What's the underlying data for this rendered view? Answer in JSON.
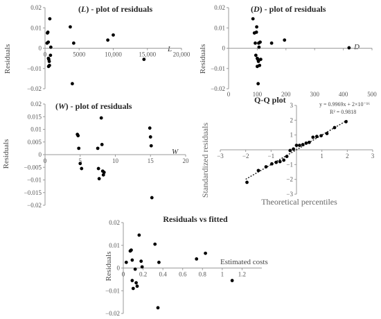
{
  "chart_data": [
    {
      "id": "L",
      "type": "scatter",
      "title_prefix": "(",
      "title_var": "L",
      "title_suffix": ") - plot of residuals",
      "ylabel": "Residuals",
      "xlabel": "L",
      "xlim": [
        0,
        20000
      ],
      "ylim": [
        -0.02,
        0.02
      ],
      "xticks": [
        0,
        5000,
        10000,
        15000,
        20000
      ],
      "xtick_labels": [
        "0",
        "5000",
        "10,000",
        "15,000",
        "20,000"
      ],
      "yticks": [
        -0.02,
        -0.01,
        0,
        0.01,
        0.02
      ],
      "ytick_labels": [
        "−0.02",
        "−0.01",
        "0",
        "0.01",
        "0.02"
      ],
      "x": [
        300,
        350,
        420,
        480,
        500,
        520,
        550,
        620,
        650,
        700,
        800,
        850,
        3700,
        4000,
        4200,
        9200,
        10000,
        14500
      ],
      "y": [
        0.0025,
        0.0075,
        0.0079,
        0.003,
        -0.005,
        -0.009,
        -0.0055,
        -0.0065,
        -0.0085,
        0.0145,
        -0.0035,
        0.0005,
        0.0105,
        -0.0175,
        0.0025,
        0.004,
        0.0065,
        -0.0055
      ]
    },
    {
      "id": "D",
      "type": "scatter",
      "title_prefix": "(",
      "title_var": "D",
      "title_suffix": ") - plot of residuals",
      "ylabel": "Residuals",
      "xlabel": "D",
      "xlim": [
        0,
        500
      ],
      "ylim": [
        -0.02,
        0.02
      ],
      "xticks": [
        0,
        100,
        200,
        300,
        400,
        500
      ],
      "xtick_labels": [
        "0",
        "100",
        "200",
        "300",
        "400",
        "500"
      ],
      "yticks": [
        -0.02,
        -0.01,
        0,
        0.01,
        0.02
      ],
      "ytick_labels": [
        "−0.02",
        "−0.01",
        "0",
        "0.01",
        "0.02"
      ],
      "x": [
        85,
        90,
        93,
        95,
        97,
        98,
        100,
        100,
        102,
        103,
        104,
        105,
        106,
        108,
        110,
        112,
        150,
        195,
        420
      ],
      "y": [
        0.0145,
        0.0075,
        0.0025,
        -0.0035,
        0.0079,
        0.0105,
        -0.005,
        -0.009,
        -0.0055,
        -0.0175,
        -0.0065,
        0.0025,
        0.0005,
        -0.0085,
        0.003,
        -0.0055,
        0.0025,
        0.004,
        0.0002
      ]
    },
    {
      "id": "W",
      "type": "scatter",
      "title_prefix": "(",
      "title_var": "W",
      "title_suffix": ") - plot of residuals",
      "ylabel": "Residuals",
      "xlabel": "W",
      "xlim": [
        0,
        20
      ],
      "ylim": [
        -0.02,
        0.02
      ],
      "xticks": [
        0,
        5,
        10,
        15,
        20
      ],
      "xtick_labels": [
        "0",
        "5",
        "10",
        "15",
        "20"
      ],
      "yticks": [
        -0.02,
        -0.015,
        -0.01,
        -0.005,
        0,
        0.005,
        0.01,
        0.015,
        0.02
      ],
      "ytick_labels": [
        "−0.02",
        "−0.015",
        "−0.01",
        "−0.005",
        "0",
        "0.005",
        "0.01",
        "0.015",
        "0.02"
      ],
      "x": [
        4.6,
        4.7,
        4.8,
        5.0,
        5.2,
        7.5,
        7.6,
        7.7,
        8.0,
        8.1,
        8.2,
        8.3,
        8.4,
        14.9,
        15.0,
        15.1,
        15.2
      ],
      "y": [
        0.008,
        0.0075,
        0.0025,
        -0.0035,
        -0.0055,
        0.0025,
        -0.0055,
        -0.0095,
        0.0145,
        0.004,
        -0.0065,
        -0.008,
        -0.007,
        0.0105,
        0.007,
        0.0035,
        -0.017
      ]
    },
    {
      "id": "QQ",
      "type": "scatter",
      "title": "Q-Q plot",
      "equation": "y = 0.9969x + 2×10⁻¹⁶",
      "r2": "R² = 0.9818",
      "ylabel": "Standardized residuals",
      "xlabel": "Theoretical percentiles",
      "xlim": [
        -3,
        3
      ],
      "ylim": [
        -3,
        3
      ],
      "xticks": [
        -3,
        -2,
        -1,
        0,
        1,
        2,
        3
      ],
      "xtick_labels": [
        "−3",
        "−2",
        "−1",
        "0",
        "1",
        "2",
        "3"
      ],
      "yticks": [
        -3,
        -2,
        -1,
        0,
        1,
        2,
        3
      ],
      "ytick_labels": [
        "−3",
        "−2",
        "−1",
        "0",
        "1",
        "2",
        "3"
      ],
      "trendline": {
        "slope": 0.9969,
        "intercept": 0.0,
        "x_range": [
          -2,
          2
        ]
      },
      "x": [
        -1.95,
        -1.5,
        -1.2,
        -0.97,
        -0.8,
        -0.65,
        -0.5,
        -0.38,
        -0.25,
        -0.12,
        0.0,
        0.12,
        0.25,
        0.38,
        0.5,
        0.65,
        0.8,
        0.97,
        1.2,
        1.5,
        1.95
      ],
      "y": [
        -2.2,
        -1.4,
        -1.15,
        -0.95,
        -0.85,
        -0.8,
        -0.7,
        -0.45,
        -0.05,
        0.05,
        0.3,
        0.3,
        0.35,
        0.45,
        0.5,
        0.85,
        0.9,
        0.95,
        1.1,
        1.5,
        1.9
      ]
    },
    {
      "id": "RF",
      "type": "scatter",
      "title": "Residuals vs fitted",
      "ylabel": "Residuals",
      "xlabel": "Estimated costs",
      "xlim": [
        0,
        1.4
      ],
      "ylim": [
        -0.02,
        0.02
      ],
      "xticks": [
        0,
        0.2,
        0.4,
        0.6,
        0.8,
        1.0,
        1.2
      ],
      "xtick_labels": [
        "0",
        "0.2",
        "0.4",
        "0.6",
        "0.8",
        "1",
        "1.2"
      ],
      "yticks": [
        -0.02,
        -0.01,
        0,
        0.01,
        0.02
      ],
      "ytick_labels": [
        "−0.02",
        "−0.01",
        "0",
        "0.01",
        "0.02"
      ],
      "x": [
        0.03,
        0.07,
        0.08,
        0.09,
        0.09,
        0.1,
        0.12,
        0.13,
        0.14,
        0.16,
        0.18,
        0.19,
        0.32,
        0.35,
        0.36,
        0.74,
        0.83,
        1.1
      ],
      "y": [
        0.0025,
        0.0075,
        0.0079,
        -0.0055,
        0.0035,
        -0.009,
        -0.0005,
        -0.0065,
        -0.008,
        0.0145,
        0.003,
        0.0005,
        0.0105,
        -0.0175,
        0.0025,
        0.004,
        0.0065,
        -0.0055
      ]
    }
  ]
}
